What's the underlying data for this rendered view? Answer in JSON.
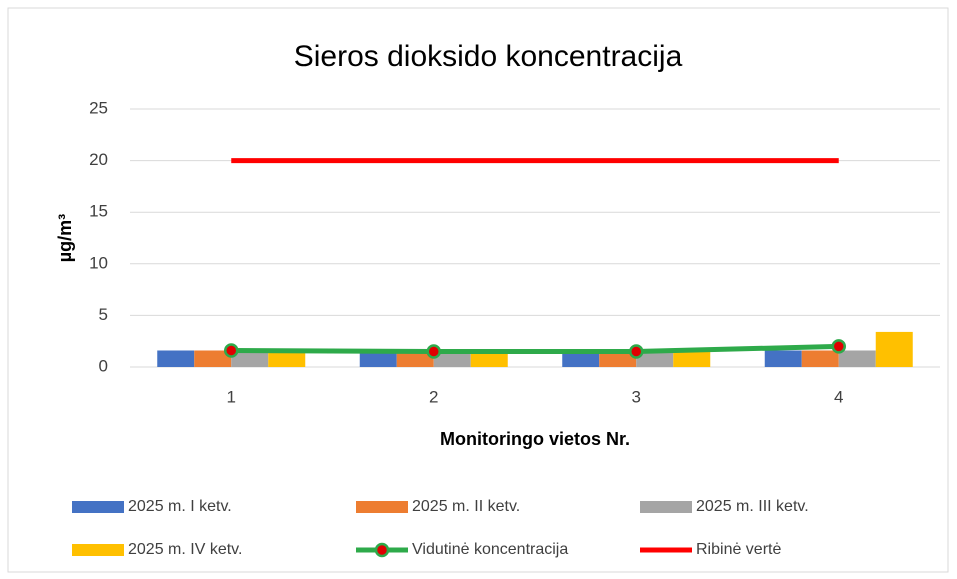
{
  "chart_data": {
    "type": "bar",
    "title": "Sieros dioksido koncentracija",
    "x_label": "Monitoringo vietos Nr.",
    "y_label": "µg/m³",
    "categories": [
      "1",
      "2",
      "3",
      "4"
    ],
    "series": [
      {
        "name": "2025 m. I ketv.",
        "color": "#4472c4",
        "values": [
          1.6,
          1.5,
          1.5,
          1.6
        ]
      },
      {
        "name": "2025 m. II ketv.",
        "color": "#ed7d31",
        "values": [
          1.6,
          1.5,
          1.5,
          1.6
        ]
      },
      {
        "name": "2025 m. III ketv.",
        "color": "#a5a5a5",
        "values": [
          1.6,
          1.5,
          1.5,
          1.6
        ]
      },
      {
        "name": "2025 m. IV ketv.",
        "color": "#ffc000",
        "values": [
          1.6,
          1.5,
          1.5,
          3.4
        ]
      },
      {
        "name": "Vidutinė koncentracija",
        "type": "line",
        "color": "#2eaa4a",
        "marker_color": "#e00000",
        "values": [
          1.6,
          1.5,
          1.5,
          2.0
        ]
      },
      {
        "name": "Ribinė vertė",
        "type": "line",
        "color": "#ff0000",
        "values": [
          20,
          20,
          20,
          20
        ]
      }
    ],
    "ylim": [
      0,
      25
    ],
    "yticks": [
      0,
      5,
      10,
      15,
      20,
      25
    ],
    "grid": true,
    "legend": "bottom"
  }
}
